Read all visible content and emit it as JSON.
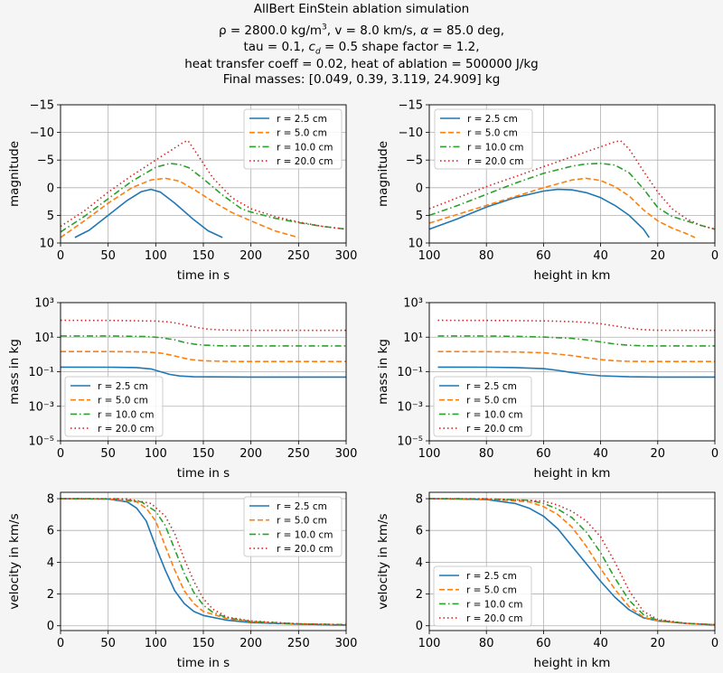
{
  "title_lines": [
    "AllBert EinStein ablation simulation",
    "ρ = 2800.0 kg/m³, v = 8.0 km/s, α = 85.0 deg,",
    "tau = 0.1, c_d = 0.5 shape factor = 1.2,",
    "heat transfer coeff = 0.02, heat of ablation = 500000 J/kg",
    "Final masses: [0.049, 0.39, 3.119, 24.909] kg"
  ],
  "legend_labels": [
    "r = 2.5 cm",
    "r = 5.0 cm",
    "r = 10.0 cm",
    "r = 20.0 cm"
  ],
  "series_colors": [
    "#1f77b4",
    "#ff7f0e",
    "#2ca02c",
    "#d62728"
  ],
  "series_dash": [
    "",
    "6,3",
    "7,3,1.5,3",
    "1.5,3"
  ],
  "chart_data": [
    {
      "type": "line",
      "xlabel": "time in s",
      "ylabel": "magnitude",
      "xlim": [
        0,
        300
      ],
      "ylim": [
        10,
        -15
      ],
      "xticks": [
        0,
        50,
        100,
        150,
        200,
        250,
        300
      ],
      "yticks": [
        10,
        5,
        0,
        -5,
        -10,
        -15
      ],
      "legend": "upper-right",
      "grid": true,
      "series": [
        {
          "name": "r = 2.5 cm",
          "x": [
            15,
            30,
            50,
            70,
            85,
            95,
            105,
            120,
            140,
            155,
            170
          ],
          "y": [
            9,
            7.7,
            5,
            2.3,
            0.7,
            0.3,
            0.8,
            2.8,
            5.8,
            7.8,
            9
          ]
        },
        {
          "name": "r = 5.0 cm",
          "x": [
            0,
            25,
            50,
            75,
            95,
            110,
            125,
            140,
            160,
            180,
            200,
            225,
            250
          ],
          "y": [
            9,
            6,
            2.8,
            0,
            -1.4,
            -1.7,
            -1.2,
            0.3,
            2.5,
            4.5,
            6,
            7.8,
            9
          ]
        },
        {
          "name": "r = 10.0 cm",
          "x": [
            0,
            25,
            50,
            75,
            100,
            115,
            125,
            135,
            150,
            170,
            190,
            200,
            225,
            250,
            275,
            300
          ],
          "y": [
            8,
            5.2,
            2,
            -1.2,
            -3.7,
            -4.4,
            -4.2,
            -3.6,
            -1.6,
            1.3,
            3.8,
            4.4,
            5.5,
            6.3,
            7,
            7.5
          ]
        },
        {
          "name": "r = 20.0 cm",
          "x": [
            0,
            25,
            50,
            75,
            100,
            120,
            130,
            134,
            145,
            160,
            180,
            200,
            225,
            250,
            275,
            300
          ],
          "y": [
            7,
            4.2,
            0.8,
            -2.2,
            -5,
            -7.2,
            -8.3,
            -8.5,
            -5.7,
            -1.8,
            1.8,
            3.8,
            5.2,
            6.2,
            7,
            7.5
          ]
        }
      ]
    },
    {
      "type": "line",
      "xlabel": "height in km",
      "ylabel": "magnitude",
      "xlim": [
        100,
        0
      ],
      "ylim": [
        10,
        -15
      ],
      "xticks": [
        100,
        80,
        60,
        40,
        20,
        0
      ],
      "yticks": [
        10,
        5,
        0,
        -5,
        -10,
        -15
      ],
      "legend": "upper-left",
      "grid": true,
      "series": [
        {
          "name": "r = 2.5 cm",
          "x": [
            100,
            90,
            80,
            70,
            60,
            55,
            50,
            45,
            40,
            35,
            30,
            25,
            23
          ],
          "y": [
            7.5,
            5.6,
            3.5,
            1.8,
            0.6,
            0.3,
            0.4,
            0.9,
            1.8,
            3.2,
            5,
            7.5,
            9
          ]
        },
        {
          "name": "r = 5.0 cm",
          "x": [
            100,
            90,
            80,
            70,
            60,
            50,
            45,
            40,
            35,
            30,
            25,
            20,
            15,
            10,
            7
          ],
          "y": [
            6.4,
            4.8,
            3.2,
            1.6,
            0,
            -1.4,
            -1.7,
            -1.3,
            -0.2,
            1.5,
            4,
            6,
            7.3,
            8.3,
            9
          ]
        },
        {
          "name": "r = 10.0 cm",
          "x": [
            100,
            90,
            80,
            70,
            60,
            50,
            45,
            40,
            35,
            30,
            25,
            20,
            15,
            10,
            5,
            0
          ],
          "y": [
            5,
            3.2,
            1.2,
            -0.8,
            -2.6,
            -3.9,
            -4.3,
            -4.4,
            -4.1,
            -2.7,
            0.2,
            3.6,
            5.2,
            6,
            6.8,
            7.5
          ]
        },
        {
          "name": "r = 20.0 cm",
          "x": [
            100,
            90,
            80,
            70,
            60,
            50,
            40,
            35,
            33,
            30,
            25,
            20,
            15,
            10,
            5,
            0
          ],
          "y": [
            3.8,
            1.8,
            -0.2,
            -2,
            -3.8,
            -5.6,
            -7.4,
            -8.3,
            -8.5,
            -7,
            -3,
            0.8,
            3.8,
            5.6,
            6.8,
            7.5
          ]
        }
      ]
    },
    {
      "type": "line",
      "xlabel": "time in s",
      "ylabel": "mass in kg",
      "xlim": [
        0,
        300
      ],
      "ylim": [
        1e-05,
        1000
      ],
      "yscale": "log",
      "xticks": [
        0,
        50,
        100,
        150,
        200,
        250,
        300
      ],
      "yticks": [
        1e-05,
        0.001,
        0.1,
        10,
        1000
      ],
      "ytick_labels": [
        "10⁻⁵",
        "10⁻³",
        "10⁻¹",
        "10¹",
        "10³"
      ],
      "legend": "lower-left",
      "grid": true,
      "series": [
        {
          "name": "r = 2.5 cm",
          "x": [
            0,
            50,
            80,
            95,
            105,
            115,
            125,
            140,
            200,
            300
          ],
          "y": [
            0.184,
            0.183,
            0.175,
            0.145,
            0.1,
            0.07,
            0.057,
            0.051,
            0.049,
            0.049
          ]
        },
        {
          "name": "r = 5.0 cm",
          "x": [
            0,
            50,
            90,
            105,
            115,
            125,
            135,
            150,
            175,
            200,
            300
          ],
          "y": [
            1.47,
            1.46,
            1.4,
            1.2,
            0.95,
            0.7,
            0.52,
            0.43,
            0.395,
            0.39,
            0.39
          ]
        },
        {
          "name": "r = 10.0 cm",
          "x": [
            0,
            50,
            90,
            105,
            120,
            130,
            140,
            150,
            165,
            180,
            200,
            300
          ],
          "y": [
            11.8,
            11.7,
            11,
            9.5,
            7,
            5,
            4,
            3.5,
            3.2,
            3.13,
            3.12,
            3.119
          ]
        },
        {
          "name": "r = 20.0 cm",
          "x": [
            0,
            50,
            100,
            115,
            125,
            135,
            145,
            155,
            170,
            190,
            210,
            300
          ],
          "y": [
            94,
            93,
            86,
            75,
            60,
            45,
            35,
            29,
            26,
            25,
            24.9,
            24.909
          ]
        }
      ]
    },
    {
      "type": "line",
      "xlabel": "height in km",
      "ylabel": "mass in kg",
      "xlim": [
        100,
        0
      ],
      "ylim": [
        1e-05,
        1000
      ],
      "yscale": "log",
      "xticks": [
        100,
        80,
        60,
        40,
        20,
        0
      ],
      "yticks": [
        1e-05,
        0.001,
        0.1,
        10,
        1000
      ],
      "ytick_labels": [
        "10⁻⁵",
        "10⁻³",
        "10⁻¹",
        "10¹",
        "10³"
      ],
      "legend": "lower-left",
      "grid": true,
      "series": [
        {
          "name": "r = 2.5 cm",
          "x": [
            97,
            80,
            70,
            60,
            55,
            50,
            45,
            40,
            30,
            20,
            0
          ],
          "y": [
            0.184,
            0.182,
            0.175,
            0.15,
            0.12,
            0.09,
            0.07,
            0.058,
            0.051,
            0.049,
            0.049
          ]
        },
        {
          "name": "r = 5.0 cm",
          "x": [
            97,
            80,
            70,
            60,
            55,
            50,
            45,
            40,
            35,
            30,
            20,
            0
          ],
          "y": [
            1.47,
            1.45,
            1.4,
            1.25,
            1.05,
            0.85,
            0.65,
            0.5,
            0.43,
            0.4,
            0.39,
            0.39
          ]
        },
        {
          "name": "r = 10.0 cm",
          "x": [
            97,
            80,
            70,
            60,
            50,
            45,
            40,
            35,
            30,
            25,
            20,
            0
          ],
          "y": [
            11.8,
            11.6,
            11.2,
            10.2,
            8.5,
            7,
            5.3,
            4,
            3.4,
            3.15,
            3.12,
            3.119
          ]
        },
        {
          "name": "r = 20.0 cm",
          "x": [
            97,
            80,
            60,
            50,
            45,
            40,
            35,
            30,
            25,
            20,
            0
          ],
          "y": [
            94,
            93,
            88,
            80,
            72,
            60,
            45,
            33,
            27,
            25,
            24.909
          ]
        }
      ]
    },
    {
      "type": "line",
      "xlabel": "time in s",
      "ylabel": "velocity in km/s",
      "xlim": [
        0,
        300
      ],
      "ylim": [
        -0.3,
        8.4
      ],
      "xticks": [
        0,
        50,
        100,
        150,
        200,
        250,
        300
      ],
      "yticks": [
        0,
        2,
        4,
        6,
        8
      ],
      "legend": "upper-right",
      "grid": true,
      "series": [
        {
          "name": "r = 2.5 cm",
          "x": [
            0,
            50,
            70,
            80,
            90,
            100,
            110,
            120,
            130,
            140,
            150,
            175,
            200,
            250,
            300
          ],
          "y": [
            8,
            7.98,
            7.8,
            7.4,
            6.6,
            5,
            3.5,
            2.2,
            1.4,
            0.9,
            0.65,
            0.35,
            0.2,
            0.1,
            0.05
          ]
        },
        {
          "name": "r = 5.0 cm",
          "x": [
            0,
            50,
            80,
            90,
            100,
            110,
            120,
            130,
            140,
            150,
            175,
            200,
            250,
            300
          ],
          "y": [
            8,
            7.99,
            7.8,
            7.4,
            6.6,
            5,
            3.5,
            2.2,
            1.4,
            0.9,
            0.45,
            0.25,
            0.12,
            0.06
          ]
        },
        {
          "name": "r = 10.0 cm",
          "x": [
            0,
            60,
            85,
            100,
            110,
            120,
            130,
            140,
            150,
            160,
            175,
            200,
            250,
            300
          ],
          "y": [
            8,
            7.99,
            7.8,
            7.2,
            6.3,
            4.8,
            3.3,
            2.1,
            1.3,
            0.85,
            0.5,
            0.27,
            0.12,
            0.07
          ]
        },
        {
          "name": "r = 20.0 cm",
          "x": [
            0,
            70,
            95,
            110,
            120,
            130,
            140,
            150,
            160,
            175,
            200,
            250,
            300
          ],
          "y": [
            8,
            7.99,
            7.7,
            6.9,
            5.8,
            4.2,
            2.8,
            1.7,
            1.05,
            0.55,
            0.3,
            0.12,
            0.07
          ]
        }
      ]
    },
    {
      "type": "line",
      "xlabel": "height in km",
      "ylabel": "velocity in km/s",
      "xlim": [
        100,
        0
      ],
      "ylim": [
        -0.3,
        8.4
      ],
      "xticks": [
        100,
        80,
        60,
        40,
        20,
        0
      ],
      "yticks": [
        0,
        2,
        4,
        6,
        8
      ],
      "legend": "lower-left",
      "grid": true,
      "series": [
        {
          "name": "r = 2.5 cm",
          "x": [
            100,
            80,
            70,
            65,
            60,
            55,
            50,
            45,
            40,
            35,
            30,
            25,
            20,
            10,
            0
          ],
          "y": [
            8,
            7.95,
            7.7,
            7.4,
            6.9,
            6.1,
            5,
            3.9,
            2.8,
            1.8,
            1,
            0.5,
            0.3,
            0.15,
            0.05
          ]
        },
        {
          "name": "r = 5.0 cm",
          "x": [
            100,
            80,
            65,
            60,
            55,
            50,
            45,
            40,
            35,
            30,
            25,
            20,
            10,
            0
          ],
          "y": [
            8,
            7.98,
            7.8,
            7.5,
            7,
            6.2,
            5,
            3.6,
            2.3,
            1.2,
            0.55,
            0.3,
            0.15,
            0.06
          ]
        },
        {
          "name": "r = 10.0 cm",
          "x": [
            100,
            80,
            65,
            60,
            55,
            50,
            45,
            40,
            35,
            30,
            25,
            20,
            10,
            0
          ],
          "y": [
            8,
            7.99,
            7.9,
            7.7,
            7.35,
            6.8,
            5.9,
            4.6,
            3,
            1.6,
            0.7,
            0.35,
            0.15,
            0.07
          ]
        },
        {
          "name": "r = 20.0 cm",
          "x": [
            100,
            80,
            60,
            55,
            50,
            45,
            40,
            35,
            30,
            25,
            20,
            10,
            0
          ],
          "y": [
            8,
            7.99,
            7.85,
            7.6,
            7.2,
            6.6,
            5.6,
            4,
            2.2,
            0.9,
            0.4,
            0.15,
            0.07
          ]
        }
      ]
    }
  ]
}
